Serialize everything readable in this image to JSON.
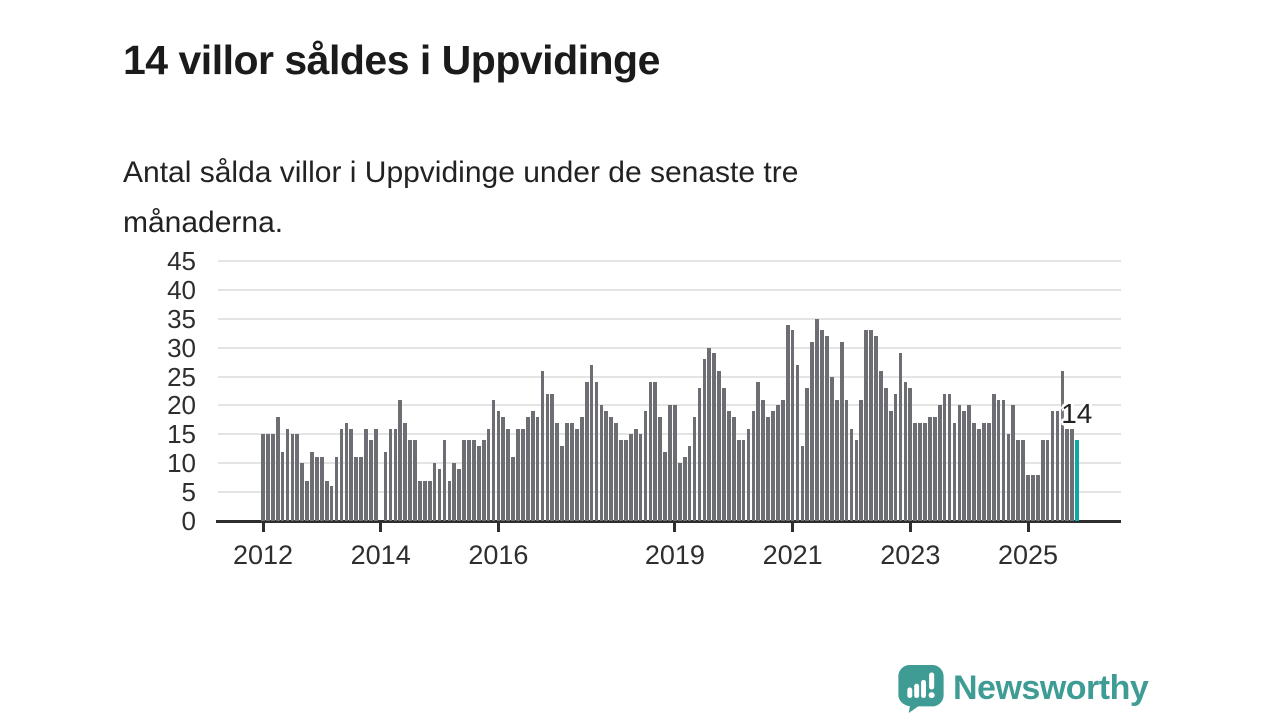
{
  "header": {
    "title": "14 villor såldes i Uppvidinge",
    "subtitle_line1": "Antal sålda villor i Uppvidinge under de senaste tre",
    "subtitle_line2": "månaderna."
  },
  "chart_data": {
    "type": "bar",
    "title": "14 villor såldes i Uppvidinge",
    "xlabel": "",
    "ylabel": "",
    "ylim": [
      0,
      45
    ],
    "grid": true,
    "y_ticks": [
      0,
      5,
      10,
      15,
      20,
      25,
      30,
      35,
      40,
      45
    ],
    "x_tick_labels": [
      "2012",
      "2014",
      "2016",
      "2019",
      "2021",
      "2023",
      "2025"
    ],
    "x_tick_years": [
      2012,
      2014,
      2016,
      2019,
      2021,
      2023,
      2025
    ],
    "x_start": "2012-01",
    "x_interval": "month",
    "bar_color": "#6d6d74",
    "highlight_color": "#0ca7a7",
    "highlight_last": true,
    "last_value_label": "14",
    "values": [
      15,
      15,
      15,
      18,
      12,
      16,
      15,
      15,
      10,
      7,
      12,
      11,
      11,
      7,
      6,
      11,
      16,
      17,
      16,
      11,
      11,
      16,
      14,
      16,
      0,
      12,
      16,
      16,
      21,
      17,
      14,
      14,
      7,
      7,
      7,
      10,
      9,
      14,
      7,
      10,
      9,
      14,
      14,
      14,
      13,
      14,
      16,
      21,
      19,
      18,
      16,
      11,
      16,
      16,
      18,
      19,
      18,
      26,
      22,
      22,
      17,
      13,
      17,
      17,
      16,
      18,
      24,
      27,
      24,
      20,
      19,
      18,
      17,
      14,
      14,
      15,
      16,
      15,
      19,
      24,
      24,
      18,
      12,
      20,
      20,
      10,
      11,
      13,
      18,
      23,
      28,
      30,
      29,
      26,
      23,
      19,
      18,
      14,
      14,
      16,
      19,
      24,
      21,
      18,
      19,
      20,
      21,
      34,
      33,
      27,
      13,
      23,
      31,
      35,
      33,
      32,
      25,
      21,
      31,
      21,
      16,
      14,
      21,
      33,
      33,
      32,
      26,
      23,
      19,
      22,
      29,
      24,
      23,
      17,
      17,
      17,
      18,
      18,
      20,
      22,
      22,
      17,
      20,
      19,
      20,
      17,
      16,
      17,
      17,
      22,
      21,
      21,
      15,
      20,
      14,
      14,
      8,
      8,
      8,
      14,
      14,
      19,
      19,
      26,
      16,
      16,
      14
    ]
  },
  "footer": {
    "brand": "Newsworthy",
    "brand_color": "#3e9c95"
  }
}
